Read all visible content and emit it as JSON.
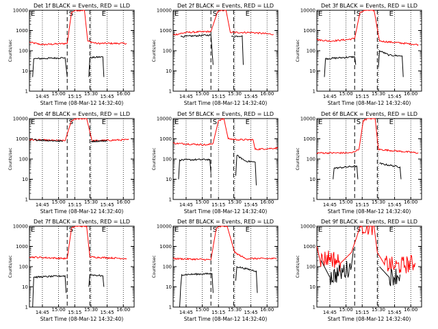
{
  "figure": {
    "x_tick_labels": [
      "14:45",
      "15:00",
      "15:15",
      "15:30",
      "15:45",
      "16:00"
    ],
    "y_tick_labels": [
      "1",
      "10",
      "100",
      "1000",
      "10000"
    ],
    "ylabel": "Counts/sec",
    "xlabel": "Start Time (08-Mar-12 14:32:40)",
    "marker_labels": [
      "E",
      "S",
      "E"
    ],
    "series_names": [
      "BLACK = Events",
      "RED = LLD"
    ],
    "colors": {
      "events": "#000000",
      "lld": "#ff0000",
      "background": "#ffffff"
    }
  },
  "chart_data": [
    {
      "type": "line",
      "title": "Det 1f BLACK = Events, RED = LLD",
      "xlabel": "Start Time (08-Mar-12 14:32:40)",
      "ylabel": "Counts/sec",
      "y_scale": "log",
      "ylim": [
        1,
        10000
      ],
      "series": [
        {
          "name": "LLD",
          "segments": [
            [
              [
                "14:33",
                260
              ],
              [
                "14:45",
                200
              ],
              [
                "15:00",
                220
              ],
              [
                "15:08",
                230
              ],
              [
                "15:12",
                8000
              ],
              [
                "15:16",
                10000
              ],
              [
                "15:24",
                10000
              ],
              [
                "15:27",
                300
              ],
              [
                "15:35",
                230
              ],
              [
                "16:03",
                230
              ]
            ]
          ]
        },
        {
          "name": "Events",
          "segments": [
            [
              [
                "14:36",
                5
              ],
              [
                "14:37",
                40
              ],
              [
                "15:06",
                45
              ],
              [
                "15:08",
                5
              ]
            ],
            [
              [
                "15:28",
                5
              ],
              [
                "15:29",
                45
              ],
              [
                "15:41",
                50
              ],
              [
                "15:42",
                5
              ]
            ]
          ]
        }
      ]
    },
    {
      "type": "line",
      "title": "Det 2f BLACK = Events, RED = LLD",
      "xlabel": "Start Time (08-Mar-12 14:32:40)",
      "ylabel": "Counts/sec",
      "y_scale": "log",
      "ylim": [
        1,
        10000
      ],
      "series": [
        {
          "name": "LLD",
          "segments": [
            [
              [
                "14:33",
                600
              ],
              [
                "14:45",
                800
              ],
              [
                "15:08",
                900
              ],
              [
                "15:14",
                8000
              ],
              [
                "15:18",
                10000
              ],
              [
                "15:22",
                10000
              ],
              [
                "15:26",
                800
              ],
              [
                "15:45",
                800
              ],
              [
                "16:06",
                650
              ]
            ]
          ]
        },
        {
          "name": "Events",
          "segments": [
            [
              [
                "14:40",
                500
              ],
              [
                "15:08",
                600
              ],
              [
                "15:10",
                20
              ]
            ],
            [
              [
                "15:27",
                500
              ],
              [
                "15:37",
                550
              ],
              [
                "15:38",
                20
              ]
            ]
          ]
        }
      ]
    },
    {
      "type": "line",
      "title": "Det 3f BLACK = Events, RED = LLD",
      "xlabel": "Start Time (08-Mar-12 14:32:40)",
      "ylabel": "Counts/sec",
      "y_scale": "log",
      "ylim": [
        1,
        10000
      ],
      "series": [
        {
          "name": "LLD",
          "segments": [
            [
              [
                "14:33",
                350
              ],
              [
                "14:45",
                300
              ],
              [
                "15:00",
                350
              ],
              [
                "15:08",
                400
              ],
              [
                "15:13",
                8000
              ],
              [
                "15:18",
                10000
              ],
              [
                "15:26",
                10000
              ],
              [
                "15:31",
                300
              ],
              [
                "16:07",
                200
              ]
            ]
          ]
        },
        {
          "name": "Events",
          "segments": [
            [
              [
                "14:40",
                5
              ],
              [
                "14:41",
                40
              ],
              [
                "15:08",
                50
              ],
              [
                "15:09",
                20
              ]
            ],
            [
              [
                "15:30",
                15
              ],
              [
                "15:31",
                100
              ],
              [
                "15:40",
                60
              ],
              [
                "15:52",
                55
              ],
              [
                "15:53",
                5
              ]
            ]
          ]
        }
      ]
    },
    {
      "type": "line",
      "title": "Det 4f BLACK = Events, RED = LLD",
      "xlabel": "Start Time (08-Mar-12 14:32:40)",
      "ylabel": "Counts/sec",
      "y_scale": "log",
      "ylim": [
        1,
        10000
      ],
      "series": [
        {
          "name": "LLD",
          "segments": [
            [
              [
                "14:33",
                900
              ],
              [
                "15:06",
                800
              ],
              [
                "15:12",
                8000
              ],
              [
                "15:18",
                10000
              ],
              [
                "15:26",
                10000
              ],
              [
                "15:31",
                800
              ],
              [
                "16:05",
                900
              ]
            ]
          ]
        },
        {
          "name": "Events",
          "segments": [
            [
              [
                "14:37",
                900
              ],
              [
                "15:04",
                750
              ]
            ],
            [
              [
                "15:30",
                750
              ],
              [
                "15:45",
                800
              ]
            ]
          ]
        }
      ]
    },
    {
      "type": "line",
      "title": "Det 5f BLACK = Events, RED = LLD",
      "xlabel": "Start Time (08-Mar-12 14:32:40)",
      "ylabel": "Counts/sec",
      "y_scale": "log",
      "ylim": [
        1,
        10000
      ],
      "series": [
        {
          "name": "LLD",
          "segments": [
            [
              [
                "14:33",
                600
              ],
              [
                "15:05",
                500
              ],
              [
                "15:10",
                600
              ],
              [
                "15:15",
                8000
              ],
              [
                "15:20",
                10000
              ],
              [
                "15:24",
                1000
              ],
              [
                "15:33",
                900
              ],
              [
                "15:47",
                900
              ],
              [
                "15:49",
                300
              ],
              [
                "16:10",
                350
              ]
            ]
          ]
        },
        {
          "name": "Events",
          "segments": [
            [
              [
                "14:38",
                10
              ],
              [
                "14:39",
                90
              ],
              [
                "15:07",
                95
              ],
              [
                "15:08",
                20
              ]
            ],
            [
              [
                "15:31",
                15
              ],
              [
                "15:32",
                150
              ],
              [
                "15:40",
                80
              ],
              [
                "15:49",
                70
              ],
              [
                "15:50",
                5
              ]
            ]
          ]
        }
      ]
    },
    {
      "type": "line",
      "title": "Det 6f BLACK = Events, RED = LLD",
      "xlabel": "Start Time (08-Mar-12 14:32:40)",
      "ylabel": "Counts/sec",
      "y_scale": "log",
      "ylim": [
        1,
        10000
      ],
      "series": [
        {
          "name": "LLD",
          "segments": [
            [
              [
                "14:33",
                200
              ],
              [
                "15:05",
                200
              ],
              [
                "15:12",
                300
              ],
              [
                "15:16",
                8000
              ],
              [
                "15:20",
                10000
              ],
              [
                "15:27",
                10000
              ],
              [
                "15:30",
                300
              ],
              [
                "16:07",
                200
              ]
            ]
          ]
        },
        {
          "name": "Events",
          "segments": [
            [
              [
                "14:48",
                10
              ],
              [
                "14:49",
                35
              ],
              [
                "15:10",
                45
              ],
              [
                "15:11",
                10
              ]
            ],
            [
              [
                "15:31",
                60
              ],
              [
                "15:50",
                40
              ],
              [
                "15:51",
                10
              ]
            ]
          ]
        }
      ]
    },
    {
      "type": "line",
      "title": "Det 7f BLACK = Events, RED = LLD",
      "xlabel": "Start Time (08-Mar-12 14:32:40)",
      "ylabel": "Counts/sec",
      "y_scale": "log",
      "ylim": [
        1,
        10000
      ],
      "series": [
        {
          "name": "LLD",
          "segments": [
            [
              [
                "14:33",
                300
              ],
              [
                "15:08",
                250
              ],
              [
                "15:12",
                8000
              ],
              [
                "15:16",
                10000
              ],
              [
                "15:26",
                10000
              ],
              [
                "15:29",
                300
              ],
              [
                "16:03",
                250
              ]
            ]
          ]
        },
        {
          "name": "Events",
          "segments": [
            [
              [
                "14:36",
                1
              ],
              [
                "14:37",
                30
              ],
              [
                "15:06",
                35
              ],
              [
                "15:07",
                5
              ]
            ],
            [
              [
                "15:28",
                10
              ],
              [
                "15:29",
                40
              ],
              [
                "15:41",
                35
              ],
              [
                "15:42",
                10
              ]
            ]
          ]
        }
      ]
    },
    {
      "type": "line",
      "title": "Det 8f BLACK = Events, RED = LLD",
      "xlabel": "Start Time (08-Mar-12 14:32:40)",
      "ylabel": "Counts/sec",
      "y_scale": "log",
      "ylim": [
        1,
        10000
      ],
      "series": [
        {
          "name": "LLD",
          "segments": [
            [
              [
                "14:33",
                250
              ],
              [
                "15:08",
                220
              ],
              [
                "15:13",
                8000
              ],
              [
                "15:18",
                10000
              ],
              [
                "15:23",
                10000
              ],
              [
                "15:30",
                500
              ],
              [
                "15:40",
                250
              ],
              [
                "16:09",
                250
              ]
            ]
          ]
        },
        {
          "name": "Events",
          "segments": [
            [
              [
                "14:39",
                1
              ],
              [
                "14:40",
                10
              ],
              [
                "14:41",
                40
              ],
              [
                "15:09",
                45
              ],
              [
                "15:10",
                5
              ]
            ],
            [
              [
                "15:31",
                20
              ],
              [
                "15:32",
                100
              ],
              [
                "15:50",
                60
              ],
              [
                "15:51",
                5
              ]
            ]
          ]
        }
      ]
    },
    {
      "type": "line",
      "title": "Det 9f BLACK = Events, RED = LLD",
      "xlabel": "Start Time (08-Mar-12 14:32:40)",
      "ylabel": "Counts/sec",
      "y_scale": "log",
      "ylim": [
        1,
        10000
      ],
      "series": [
        {
          "name": "LLD",
          "segments": [
            [
              [
                "14:33",
                1000
              ],
              [
                "14:36",
                200
              ],
              [
                "14:45",
                300
              ],
              [
                "14:55",
                150
              ],
              [
                "15:05",
                500
              ],
              [
                "15:10",
                3000
              ],
              [
                "15:13",
                10000
              ],
              [
                "15:26",
                10000
              ],
              [
                "15:29",
                500
              ],
              [
                "15:35",
                150
              ],
              [
                "15:45",
                100
              ],
              [
                "16:04",
                150
              ]
            ]
          ]
        },
        {
          "name": "Events",
          "segments": [
            [
              [
                "14:37",
                200
              ],
              [
                "14:45",
                30
              ],
              [
                "14:55",
                50
              ],
              [
                "15:05",
                100
              ],
              [
                "15:07",
                800
              ]
            ],
            [
              [
                "15:31",
                100
              ],
              [
                "15:40",
                30
              ],
              [
                "15:50",
                40
              ]
            ]
          ]
        }
      ]
    }
  ]
}
